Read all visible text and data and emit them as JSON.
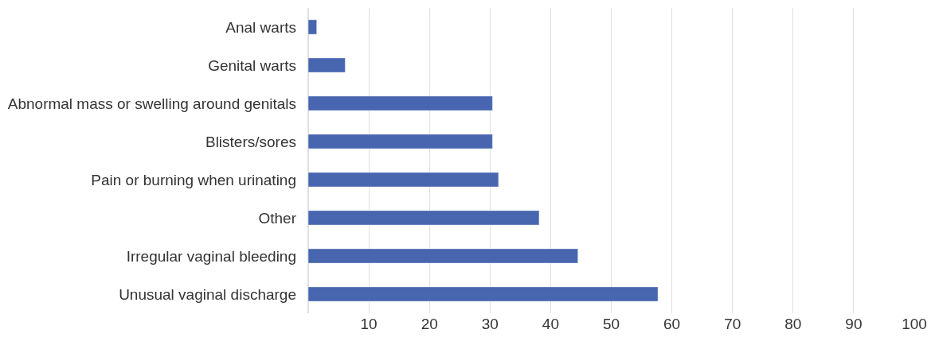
{
  "chart_data": {
    "type": "bar",
    "orientation": "horizontal",
    "categories": [
      "Anal warts",
      "Genital warts",
      "Abnormal mass or swelling around genitals",
      "Blisters/sores",
      "Pain or burning when urinating",
      "Other",
      "Irregular vaginal bleeding",
      "Unusual vaginal discharge"
    ],
    "values": [
      1.4,
      6.1,
      30.4,
      30.4,
      31.4,
      38.1,
      44.5,
      57.7
    ],
    "color": "#4865b0",
    "xlim": [
      0,
      100
    ],
    "xticks": [
      10,
      20,
      30,
      40,
      50,
      60,
      70,
      80,
      90,
      100
    ],
    "grid": "x",
    "legend": false
  }
}
